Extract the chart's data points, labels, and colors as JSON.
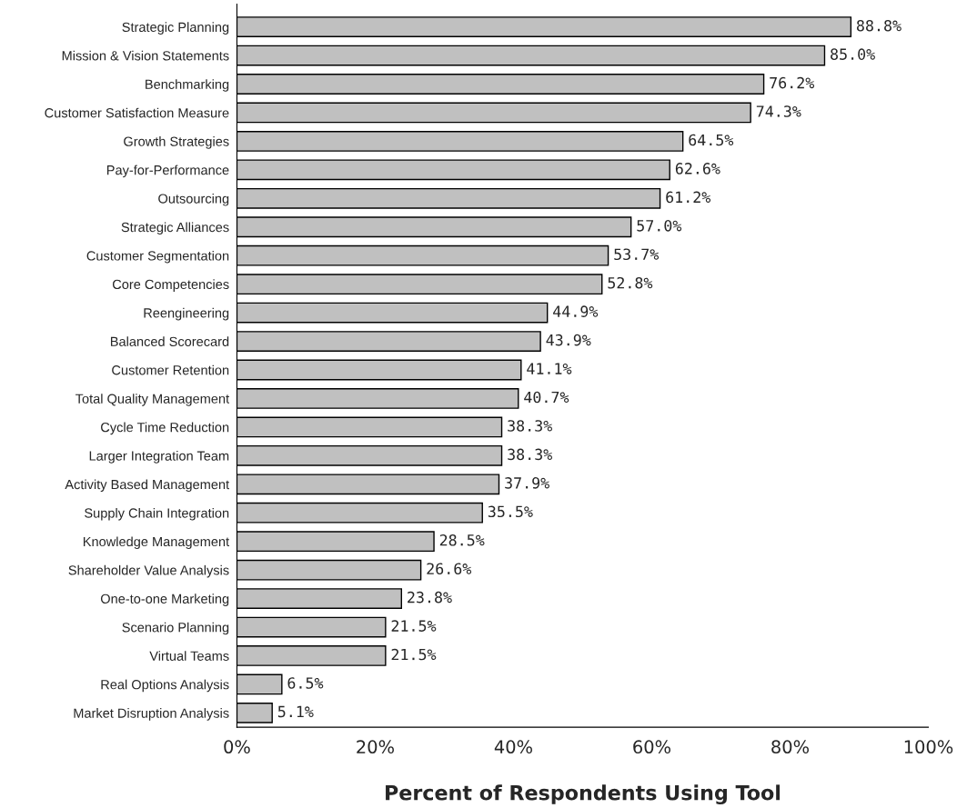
{
  "chart_data": {
    "type": "bar",
    "orientation": "horizontal",
    "xlabel": "Percent of Respondents Using Tool",
    "categories": [
      "Strategic Planning",
      "Mission & Vision Statements",
      "Benchmarking",
      "Customer Satisfaction Measure",
      "Growth Strategies",
      "Pay-for-Performance",
      "Outsourcing",
      "Strategic Alliances",
      "Customer Segmentation",
      "Core Competencies",
      "Reengineering",
      "Balanced Scorecard",
      "Customer Retention",
      "Total Quality Management",
      "Cycle Time Reduction",
      "Larger Integration Team",
      "Activity Based Management",
      "Supply Chain Integration",
      "Knowledge Management",
      "Shareholder Value Analysis",
      "One-to-one Marketing",
      "Scenario Planning",
      "Virtual Teams",
      "Real Options Analysis",
      "Market Disruption Analysis"
    ],
    "values": [
      88.8,
      85.0,
      76.2,
      74.3,
      64.5,
      62.6,
      61.2,
      57.0,
      53.7,
      52.8,
      44.9,
      43.9,
      41.1,
      40.7,
      38.3,
      38.3,
      37.9,
      35.5,
      28.5,
      26.6,
      23.8,
      21.5,
      21.5,
      6.5,
      5.1
    ],
    "value_labels": [
      "88.8%",
      "85.0%",
      "76.2%",
      "74.3%",
      "64.5%",
      "62.6%",
      "61.2%",
      "57.0%",
      "53.7%",
      "52.8%",
      "44.9%",
      "43.9%",
      "41.1%",
      "40.7%",
      "38.3%",
      "38.3%",
      "37.9%",
      "35.5%",
      "28.5%",
      "26.6%",
      "23.8%",
      "21.5%",
      "21.5%",
      "6.5%",
      "5.1%"
    ],
    "color": "#c0c0c0",
    "xlim": [
      0,
      100
    ],
    "xticks": [
      {
        "value": 0,
        "label": "0%"
      },
      {
        "value": 20,
        "label": "20%"
      },
      {
        "value": 40,
        "label": "40%"
      },
      {
        "value": 60,
        "label": "60%"
      },
      {
        "value": 80,
        "label": "80%"
      },
      {
        "value": 100,
        "label": "100%"
      }
    ],
    "grid": false,
    "legend": false
  }
}
